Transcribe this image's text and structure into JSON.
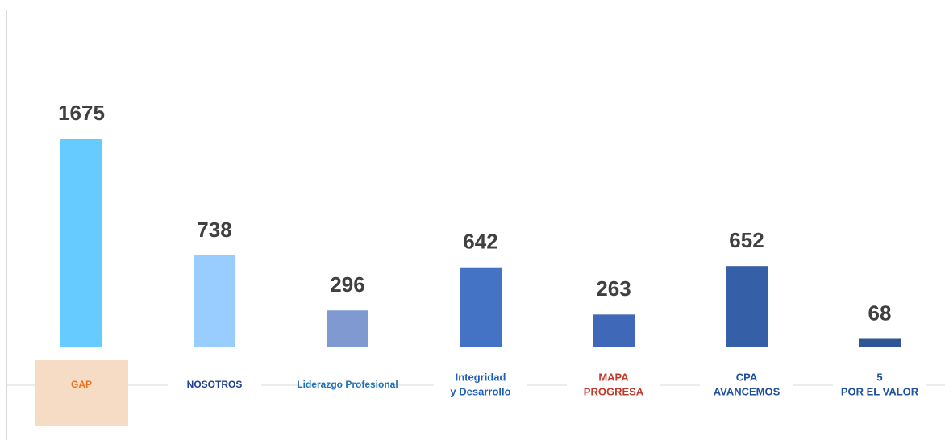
{
  "chart_data": {
    "type": "bar",
    "categories": [
      [
        "GAP"
      ],
      [
        "NOSOTROS"
      ],
      [
        "Liderazgo Profesional"
      ],
      [
        "Integridad",
        "y Desarrollo"
      ],
      [
        "MAPA",
        "PROGRESA"
      ],
      [
        "CPA",
        "AVANCEMOS"
      ],
      [
        "5",
        "POR EL VALOR"
      ]
    ],
    "values": [
      1675,
      738,
      296,
      642,
      263,
      652,
      68
    ],
    "colors": [
      "#66ccff",
      "#99ccff",
      "#8099d0",
      "#4472c4",
      "#4068b8",
      "#3560a8",
      "#2f5597"
    ]
  }
}
